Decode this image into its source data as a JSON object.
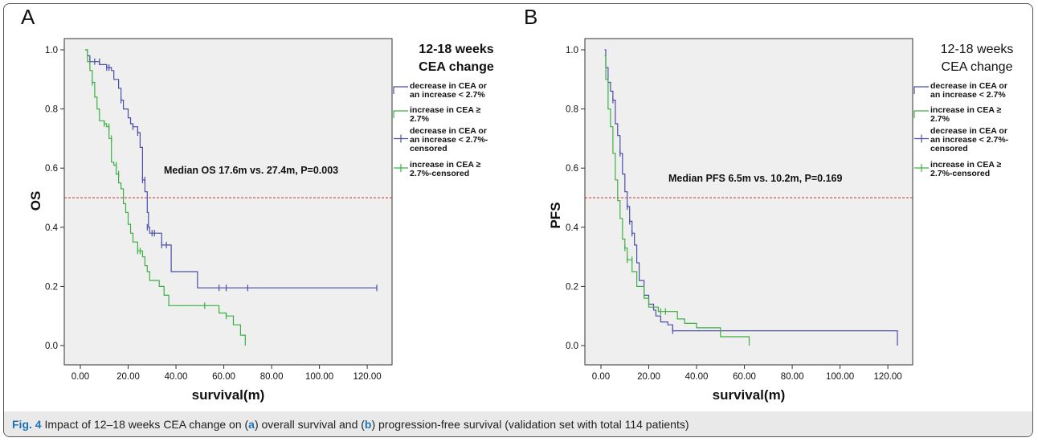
{
  "caption": {
    "fig_label": "Fig. 4",
    "part1": "Impact of 12–18 weeks CEA change on (",
    "a": "a",
    "part2": ") overall survival and (",
    "b": "b",
    "part3": ") progression-free survival (validation set with total 114 patients)"
  },
  "colors": {
    "group1": "#4a4ea8",
    "group2": "#3cb043",
    "median_line": "#cc3333",
    "plot_bg": "#efefef"
  },
  "chart_data": [
    {
      "type": "line",
      "panel": "A",
      "xlabel": "survival(m)",
      "ylabel": "OS",
      "xlim": [
        0,
        125
      ],
      "ylim": [
        0,
        1.0
      ],
      "xticks": [
        "0.00",
        "20.00",
        "40.00",
        "60.00",
        "80.00",
        "100.00",
        "120.00"
      ],
      "yticks": [
        "0.0",
        "0.2",
        "0.4",
        "0.6",
        "0.8",
        "1.0"
      ],
      "reference_line_y": 0.5,
      "annotation": "Median OS 17.6m vs. 27.4m, P=0.003",
      "legend_title": [
        "12-18 weeks",
        "CEA change"
      ],
      "legend": [
        [
          "decrease in CEA or",
          "an increase < 2.7%"
        ],
        [
          "increase in CEA ≥",
          "2.7%"
        ],
        [
          "decrease in CEA or",
          "an increase < 2.7%-",
          "censored"
        ],
        [
          "increase in CEA ≥",
          "2.7%-censored"
        ]
      ],
      "series": [
        {
          "color": "#4a4ea8",
          "steps": [
            [
              2,
              1.0
            ],
            [
              3,
              0.98
            ],
            [
              4,
              0.96
            ],
            [
              8,
              0.95
            ],
            [
              11,
              0.94
            ],
            [
              13,
              0.93
            ],
            [
              14,
              0.9
            ],
            [
              16,
              0.87
            ],
            [
              17,
              0.83
            ],
            [
              18,
              0.8
            ],
            [
              20,
              0.77
            ],
            [
              21,
              0.75
            ],
            [
              22,
              0.74
            ],
            [
              24,
              0.72
            ],
            [
              25,
              0.67
            ],
            [
              26,
              0.56
            ],
            [
              27,
              0.52
            ],
            [
              28,
              0.45
            ],
            [
              28.5,
              0.4
            ],
            [
              29,
              0.38
            ],
            [
              34,
              0.34
            ],
            [
              37,
              0.34
            ],
            [
              38,
              0.25
            ],
            [
              48,
              0.25
            ],
            [
              49,
              0.195
            ],
            [
              124,
              0.195
            ]
          ],
          "censored": [
            [
              4,
              0.96
            ],
            [
              6,
              0.96
            ],
            [
              8,
              0.96
            ],
            [
              11,
              0.94
            ],
            [
              12,
              0.94
            ],
            [
              17,
              0.83
            ],
            [
              22,
              0.74
            ],
            [
              24,
              0.72
            ],
            [
              26,
              0.56
            ],
            [
              27,
              0.56
            ],
            [
              28,
              0.4
            ],
            [
              30,
              0.38
            ],
            [
              31,
              0.38
            ],
            [
              34,
              0.34
            ],
            [
              36,
              0.34
            ],
            [
              58,
              0.195
            ],
            [
              61,
              0.195
            ],
            [
              70,
              0.195
            ],
            [
              124,
              0.195
            ]
          ]
        },
        {
          "color": "#3cb043",
          "steps": [
            [
              2,
              1.0
            ],
            [
              3,
              0.96
            ],
            [
              4,
              0.93
            ],
            [
              5,
              0.89
            ],
            [
              6,
              0.84
            ],
            [
              7,
              0.8
            ],
            [
              8,
              0.76
            ],
            [
              10,
              0.75
            ],
            [
              11,
              0.74
            ],
            [
              12,
              0.7
            ],
            [
              13,
              0.62
            ],
            [
              14,
              0.61
            ],
            [
              15,
              0.58
            ],
            [
              16,
              0.55
            ],
            [
              17,
              0.53
            ],
            [
              18,
              0.48
            ],
            [
              19,
              0.45
            ],
            [
              20,
              0.41
            ],
            [
              21,
              0.38
            ],
            [
              22,
              0.35
            ],
            [
              24,
              0.32
            ],
            [
              26,
              0.3
            ],
            [
              27,
              0.27
            ],
            [
              28,
              0.25
            ],
            [
              29,
              0.22
            ],
            [
              33,
              0.2
            ],
            [
              35,
              0.17
            ],
            [
              37,
              0.135
            ],
            [
              52,
              0.135
            ],
            [
              57,
              0.135
            ],
            [
              58,
              0.11
            ],
            [
              61,
              0.1
            ],
            [
              64,
              0.07
            ],
            [
              67,
              0.035
            ],
            [
              69,
              0.0
            ]
          ],
          "censored": [
            [
              5,
              0.89
            ],
            [
              10,
              0.75
            ],
            [
              12,
              0.74
            ],
            [
              13,
              0.7
            ],
            [
              15,
              0.61
            ],
            [
              16,
              0.58
            ],
            [
              24,
              0.32
            ],
            [
              25,
              0.32
            ],
            [
              52,
              0.135
            ],
            [
              61,
              0.1
            ]
          ]
        }
      ]
    },
    {
      "type": "line",
      "panel": "B",
      "xlabel": "survival(m)",
      "ylabel": "PFS",
      "xlim": [
        0,
        125
      ],
      "ylim": [
        0,
        1.0
      ],
      "xticks": [
        "0.00",
        "20.00",
        "40.00",
        "60.00",
        "80.00",
        "100.00",
        "120.00"
      ],
      "yticks": [
        "0.0",
        "0.2",
        "0.4",
        "0.6",
        "0.8",
        "1.0"
      ],
      "reference_line_y": 0.5,
      "annotation": "Median PFS 6.5m vs. 10.2m, P=0.169",
      "legend_title": [
        "12-18 weeks",
        "CEA change"
      ],
      "legend": [
        [
          "decrease in CEA or",
          "an increase < 2.7%"
        ],
        [
          "increase in CEA ≥",
          "2.7%"
        ],
        [
          "decrease in CEA or",
          "an increase < 2.7%-",
          "censored"
        ],
        [
          "increase in CEA ≥",
          "2.7%-censored"
        ]
      ],
      "series": [
        {
          "color": "#4a4ea8",
          "steps": [
            [
              1.5,
              1.0
            ],
            [
              2,
              0.94
            ],
            [
              3,
              0.89
            ],
            [
              4,
              0.86
            ],
            [
              5,
              0.83
            ],
            [
              6,
              0.75
            ],
            [
              7,
              0.71
            ],
            [
              8,
              0.65
            ],
            [
              9,
              0.58
            ],
            [
              10,
              0.52
            ],
            [
              11,
              0.47
            ],
            [
              12,
              0.42
            ],
            [
              13,
              0.38
            ],
            [
              14,
              0.34
            ],
            [
              15,
              0.28
            ],
            [
              16,
              0.22
            ],
            [
              18,
              0.17
            ],
            [
              20,
              0.14
            ],
            [
              22,
              0.12
            ],
            [
              23,
              0.1
            ],
            [
              25,
              0.08
            ],
            [
              28,
              0.07
            ],
            [
              30,
              0.05
            ],
            [
              124,
              0.05
            ],
            [
              124,
              0.0
            ]
          ],
          "censored": [
            [
              5,
              0.83
            ],
            [
              8,
              0.65
            ],
            [
              11,
              0.47
            ],
            [
              12,
              0.42
            ],
            [
              13,
              0.38
            ],
            [
              30,
              0.05
            ]
          ]
        },
        {
          "color": "#3cb043",
          "steps": [
            [
              1.5,
              0.98
            ],
            [
              2,
              0.9
            ],
            [
              3,
              0.8
            ],
            [
              4,
              0.74
            ],
            [
              5,
              0.65
            ],
            [
              6,
              0.56
            ],
            [
              7,
              0.49
            ],
            [
              8,
              0.43
            ],
            [
              9,
              0.36
            ],
            [
              10,
              0.33
            ],
            [
              11,
              0.29
            ],
            [
              13,
              0.25
            ],
            [
              15,
              0.2
            ],
            [
              18,
              0.16
            ],
            [
              20,
              0.13
            ],
            [
              24,
              0.115
            ],
            [
              32,
              0.09
            ],
            [
              35,
              0.075
            ],
            [
              40,
              0.06
            ],
            [
              50,
              0.03
            ],
            [
              62,
              0.0
            ]
          ],
          "censored": [
            [
              10,
              0.33
            ],
            [
              11,
              0.29
            ],
            [
              13,
              0.29
            ],
            [
              25,
              0.115
            ],
            [
              27,
              0.115
            ]
          ]
        }
      ]
    }
  ]
}
